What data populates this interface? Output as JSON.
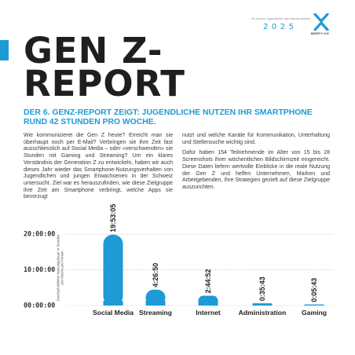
{
  "header": {
    "tagline": "So nutzen Jugendliche das Handy wirklich.",
    "year": "2025",
    "logo_text": "BEEFY.CH",
    "logo_icon": "x-mark-logo",
    "accent_color": "#1e9ad6"
  },
  "title": {
    "line1": "GEN Z-",
    "line2": "REPORT"
  },
  "subhead": "DER 6. GENZ-REPORT ZEIGT: JUGENDLICHE NUTZEN IHR SMARTPHONE RUND 42 STUNDEN PRO WOCHE.",
  "body": {
    "left": "Wie kommunizieret die Gen Z heute? Erreicht man sie überhaupt noch per E-Mail? Verbringen sie ihre Zeit fast ausschliesslich auf Social Media – oder «verschwenden» sie Stunden mit Gaming und Streaming? Um ein klares Verständnis der Generation Z zu entwickeln, haben wir auch dieses Jahr wieder das Smartphone-Nutzungsverhalten von Jugendlichen und jungen Erwachsenen in der Schweiz untersucht. Ziel war es herauszufinden, wie diese Zielgruppe ihre Zeit am Smartphone verbringt, welche Apps sie bevorzugt",
    "right_p1": "nutzt und welche Kanäle für Kommunikation, Unterhaltung und Stellensuche wichtig sind.",
    "right_p2": "Dafür haben 154 Teilnehmende im Alter von 15 bis 28 Screenshots ihrer wöchentlichen Bildschirmzeit eingereicht. Diese Daten liefern wertvolle Einblicke in die reale Nutzung der Gen Z und helfen Unternehmen, Marken und Arbeitgebenden, ihre Strategien gezielt auf diese Zielgruppe auszurichten."
  },
  "chart_data": {
    "type": "bar",
    "ylabel": "Durchschnittliche Nutzungsdauer in Stunden pro Woche pro Person",
    "ylim": [
      0,
      24
    ],
    "yticks": [
      {
        "value": 0,
        "label": "00:00:00"
      },
      {
        "value": 10,
        "label": "10:00:00"
      },
      {
        "value": 20,
        "label": "20:00:00"
      }
    ],
    "grid": true,
    "bar_color": "#1e9ad6",
    "categories": [
      "Social Media",
      "Streaming",
      "Internet",
      "Administration",
      "Gaming"
    ],
    "values": [
      19.8847,
      4.4472,
      2.7478,
      0.5953,
      0.0953
    ],
    "data_labels": [
      "19:53:05",
      "4:26:50",
      "2:44:52",
      "0:35:43",
      "0:05:43"
    ]
  }
}
